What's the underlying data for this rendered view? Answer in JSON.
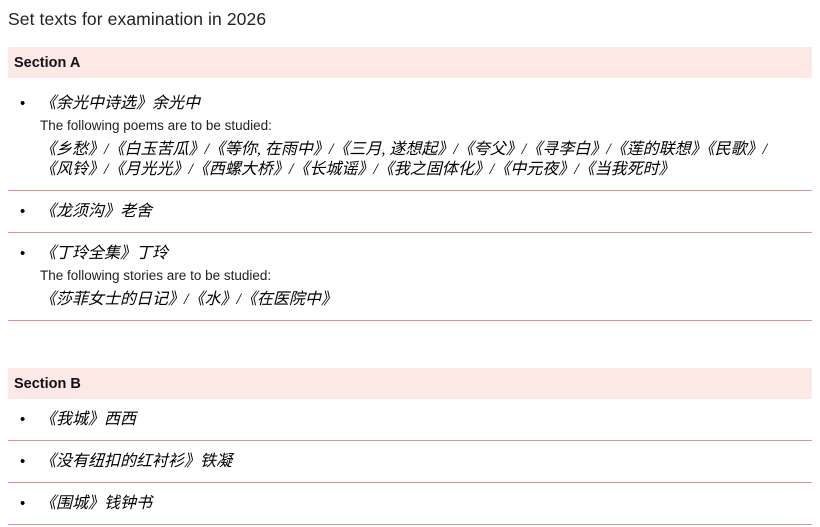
{
  "page": {
    "title": "Set texts for examination in 2026"
  },
  "ui": {
    "bullet": "•"
  },
  "colors": {
    "section_header_bg": "#fce9e6",
    "divider": "#e28f8f",
    "text": "#222222"
  },
  "sections": [
    {
      "header": "Section A",
      "items": [
        {
          "title": "《余光中诗选》余光中",
          "note": "The following poems are to be studied:",
          "details_lines": [
            "《乡愁》/《白玉苦瓜》/《等你, 在雨中》/《三月, 遂想起》/《夸父》/《寻李白》/《莲的联想》《民歌》/",
            "《风铃》/《月光光》/《西螺大桥》/《长城谣》/《我之固体化》/《中元夜》/《当我死时》"
          ]
        },
        {
          "title": "《龙须沟》老舍"
        },
        {
          "title": "《丁玲全集》丁玲",
          "note": "The following stories are to be studied:",
          "details_lines": [
            "《莎菲女士的日记》/《水》/《在医院中》"
          ]
        }
      ]
    },
    {
      "header": "Section B",
      "items": [
        {
          "title": "《我城》西西"
        },
        {
          "title": "《没有纽扣的红衬衫》铁凝"
        },
        {
          "title": "《围城》钱钟书"
        }
      ]
    }
  ]
}
